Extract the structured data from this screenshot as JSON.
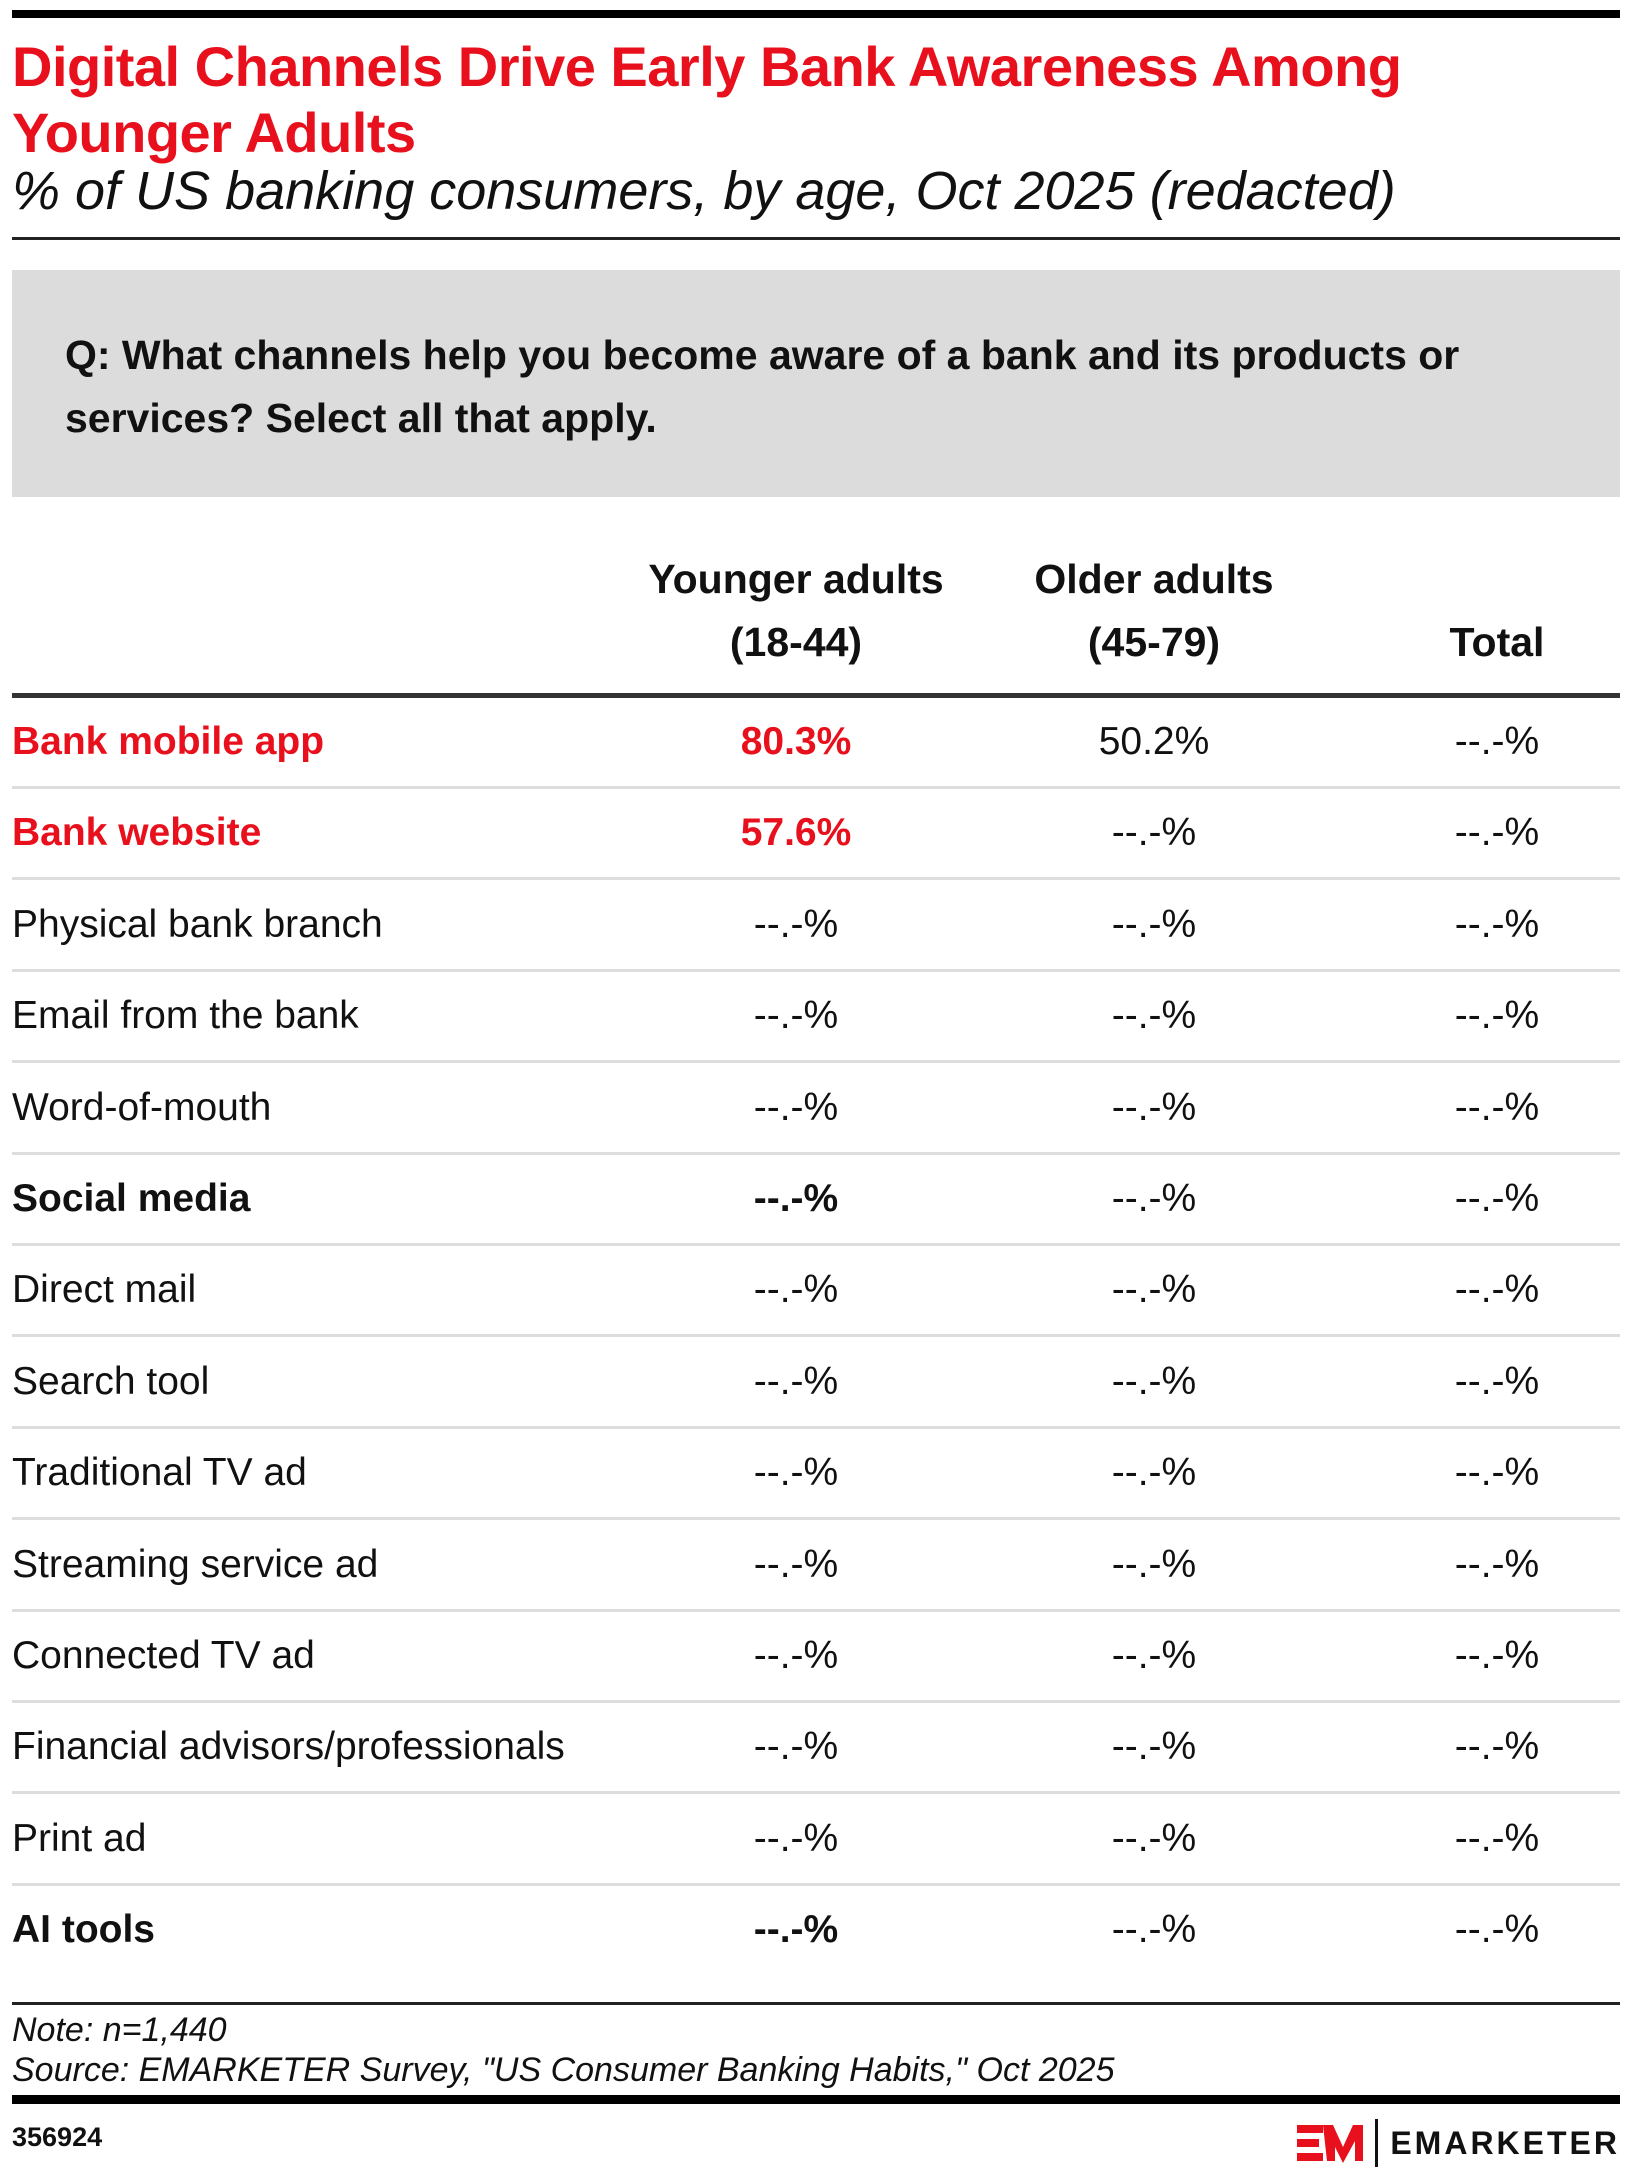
{
  "chart_data": {
    "type": "table",
    "title": "Digital Channels Drive Early Bank Awareness Among Younger Adults",
    "subtitle": "% of US banking consumers, by age, Oct 2025 (redacted)",
    "question": "Q: What channels help you become aware of a bank and its products or services? Select all that apply.",
    "columns": [
      {
        "line1": "Younger adults",
        "line2": "(18-44)"
      },
      {
        "line1": "Older adults",
        "line2": "(45-79)"
      },
      {
        "line1": "",
        "line2": "Total"
      }
    ],
    "rows": [
      {
        "label": "Bank mobile app",
        "values": [
          "80.3%",
          "50.2%",
          "--.-%"
        ],
        "style": "highlight"
      },
      {
        "label": "Bank website",
        "values": [
          "57.6%",
          "--.-%",
          "--.-%"
        ],
        "style": "highlight"
      },
      {
        "label": "Physical bank branch",
        "values": [
          "--.-%",
          "--.-%",
          "--.-%"
        ],
        "style": "normal"
      },
      {
        "label": "Email from the bank",
        "values": [
          "--.-%",
          "--.-%",
          "--.-%"
        ],
        "style": "normal"
      },
      {
        "label": "Word-of-mouth",
        "values": [
          "--.-%",
          "--.-%",
          "--.-%"
        ],
        "style": "normal"
      },
      {
        "label": "Social media",
        "values": [
          "--.-%",
          "--.-%",
          "--.-%"
        ],
        "style": "bold"
      },
      {
        "label": "Direct mail",
        "values": [
          "--.-%",
          "--.-%",
          "--.-%"
        ],
        "style": "normal"
      },
      {
        "label": "Search tool",
        "values": [
          "--.-%",
          "--.-%",
          "--.-%"
        ],
        "style": "normal"
      },
      {
        "label": "Traditional TV ad",
        "values": [
          "--.-%",
          "--.-%",
          "--.-%"
        ],
        "style": "normal"
      },
      {
        "label": "Streaming service ad",
        "values": [
          "--.-%",
          "--.-%",
          "--.-%"
        ],
        "style": "normal"
      },
      {
        "label": "Connected TV ad",
        "values": [
          "--.-%",
          "--.-%",
          "--.-%"
        ],
        "style": "normal"
      },
      {
        "label": "Financial advisors/professionals",
        "values": [
          "--.-%",
          "--.-%",
          "--.-%"
        ],
        "style": "normal"
      },
      {
        "label": "Print ad",
        "values": [
          "--.-%",
          "--.-%",
          "--.-%"
        ],
        "style": "normal"
      },
      {
        "label": "AI tools",
        "values": [
          "--.-%",
          "--.-%",
          "--.-%"
        ],
        "style": "bold"
      }
    ],
    "note": "Note: n=1,440",
    "source": "Source: EMARKETER Survey, \"US Consumer Banking Habits,\" Oct 2025"
  },
  "footer": {
    "chart_id": "356924",
    "logo_text": "EMARKETER"
  },
  "colors": {
    "accent": "#e8101c",
    "question_bg": "#dcdcdc",
    "separator": "#dddddd"
  }
}
